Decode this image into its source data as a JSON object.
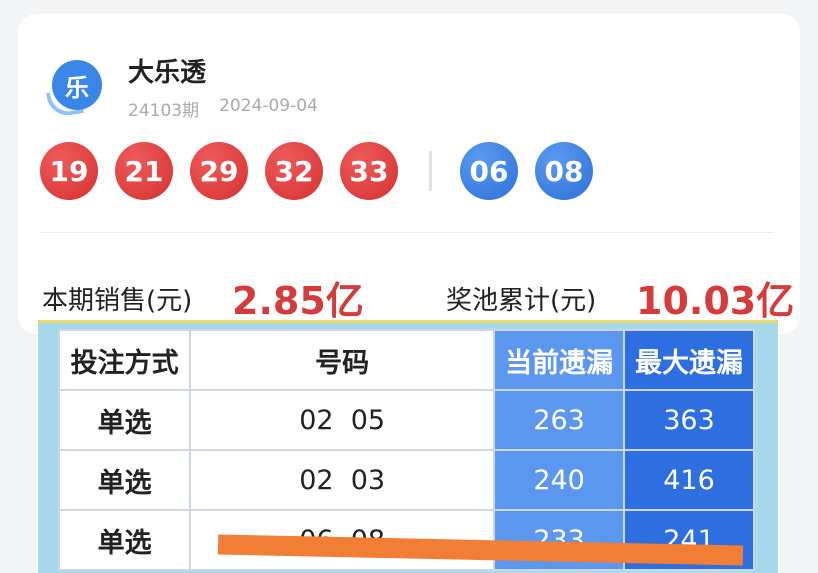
{
  "lottery": {
    "name": "大乐透",
    "logo_glyph": "乐",
    "issue": "24103期",
    "date": "2024-09-04",
    "front_numbers": [
      "19",
      "21",
      "29",
      "32",
      "33"
    ],
    "back_numbers": [
      "06",
      "08"
    ],
    "colors": {
      "front": "#d63030",
      "back": "#2c6ed8"
    }
  },
  "sales": {
    "period_label": "本期销售(元)",
    "period_value": "2.85亿",
    "pool_label": "奖池累计(元)",
    "pool_value": "10.03亿"
  },
  "table": {
    "headers": [
      "投注方式",
      "号码",
      "当前遗漏",
      "最大遗漏"
    ],
    "rows": [
      [
        "单选",
        "02  05",
        "263",
        "363"
      ],
      [
        "单选",
        "02  03",
        "240",
        "416"
      ],
      [
        "单选",
        "06  08",
        "233",
        "241"
      ]
    ]
  }
}
